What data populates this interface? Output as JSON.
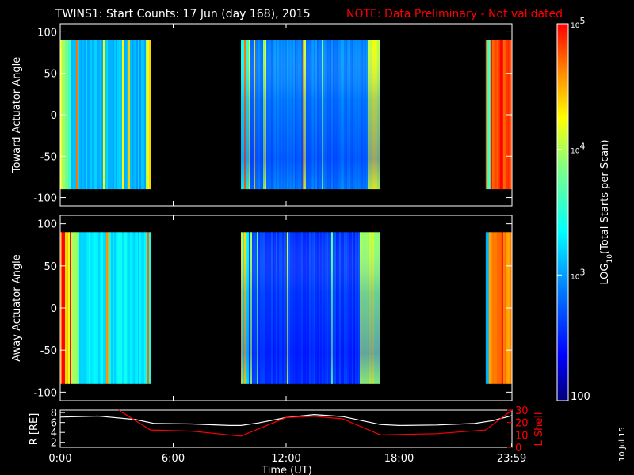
{
  "header": {
    "title": "TWINS1: Start Counts: 17 Jun (day 168), 2015",
    "note": "NOTE: Data Preliminary - Not validated",
    "note_color": "#ff0000"
  },
  "side_date": "10 Jul 15",
  "chart_data": [
    {
      "type": "heatmap",
      "ylabel": "Toward Actuator Angle",
      "ylim": [
        -110,
        110
      ],
      "yticks": [
        "100",
        "50",
        "0",
        "-50",
        "-100"
      ],
      "ytick_values": [
        100,
        50,
        0,
        -50,
        -100
      ],
      "x_range_hours": [
        0,
        24
      ],
      "data_intervals_hours": [
        [
          0.0,
          4.8
        ],
        [
          9.6,
          17.0
        ],
        [
          22.6,
          24.0
        ]
      ],
      "data_y_range": [
        -90,
        90
      ],
      "approx_log10_counts": {
        "interval_1": 3.1,
        "interval_2": 2.9,
        "interval_3": 4.8
      }
    },
    {
      "type": "heatmap",
      "ylabel": "Away Actuator Angle",
      "ylim": [
        -110,
        110
      ],
      "yticks": [
        "100",
        "50",
        "0",
        "-50",
        "-100"
      ],
      "ytick_values": [
        100,
        50,
        0,
        -50,
        -100
      ],
      "x_range_hours": [
        0,
        24
      ],
      "data_intervals_hours": [
        [
          0.0,
          4.8
        ],
        [
          9.6,
          17.0
        ],
        [
          22.6,
          24.0
        ]
      ],
      "data_y_range": [
        -90,
        90
      ],
      "approx_log10_counts": {
        "interval_1": 3.3,
        "interval_2": 2.6,
        "interval_3": 4.6
      }
    },
    {
      "type": "line",
      "ylabel_left": "R [RE]",
      "ylabel_right": "L Shell",
      "right_axis_color": "#ff0000",
      "ylim_left": [
        1,
        8.5
      ],
      "ylim_right": [
        0,
        30
      ],
      "yticks_left": [
        "8",
        "6",
        "4",
        "2"
      ],
      "yticks_right": [
        "30",
        "20",
        "10",
        "0"
      ],
      "xlabel": "Time (UT)",
      "xticks": [
        "0:00",
        "6:00",
        "12:00",
        "18:00",
        "23:59"
      ],
      "xtick_values": [
        0,
        6,
        12,
        18,
        23.983
      ],
      "series": [
        {
          "axis": "left",
          "color": "#ffffff",
          "x": [
            0,
            2,
            4,
            5,
            7,
            9,
            9.6,
            10.5,
            12,
            13.5,
            15,
            17,
            18,
            20,
            22,
            23,
            24
          ],
          "values": [
            7.1,
            7.3,
            6.6,
            5.8,
            5.7,
            5.4,
            5.4,
            5.9,
            7.0,
            7.6,
            7.2,
            5.6,
            5.4,
            5.5,
            5.8,
            6.4,
            7.4
          ]
        },
        {
          "axis": "right",
          "color": "#ff0000",
          "x": [
            3.1,
            4.8,
            7,
            9.6,
            12,
            13.5,
            15,
            17,
            20,
            22.6,
            24
          ],
          "values": [
            30,
            14,
            13,
            9,
            24,
            25,
            23,
            10,
            11,
            14,
            30
          ]
        }
      ]
    }
  ],
  "colorbar": {
    "label_main": "LOG",
    "label_sub": "10",
    "label_rest": "(Total Starts per Scan)",
    "range_log10": [
      2,
      5
    ],
    "ticks": [
      {
        "base": "10",
        "exp": "5",
        "value": 5
      },
      {
        "base": "10",
        "exp": "4",
        "value": 4
      },
      {
        "base": "10",
        "exp": "3",
        "value": 3
      }
    ],
    "bottom_label": "100",
    "stops": [
      "#000080",
      "#0000ff",
      "#0080ff",
      "#00ffff",
      "#80ff80",
      "#ffff00",
      "#ff8000",
      "#ff0000"
    ]
  }
}
